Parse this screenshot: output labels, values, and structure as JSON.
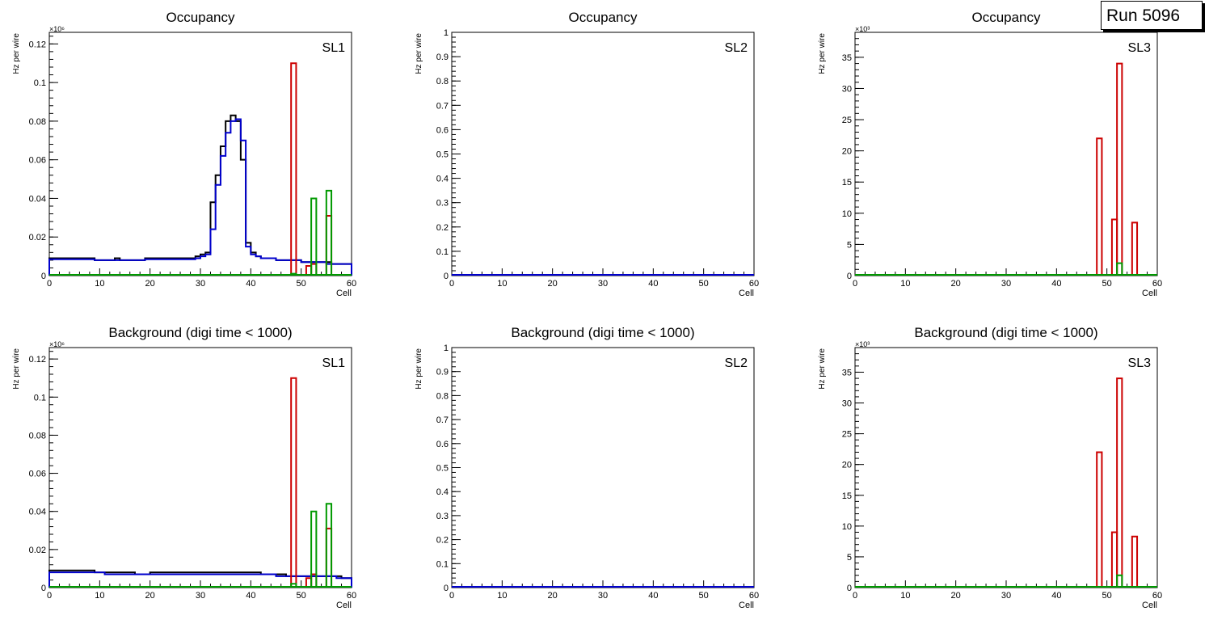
{
  "run_label": "Run 5096",
  "colors": {
    "black": "#000000",
    "blue": "#0000cc",
    "red": "#cc0000",
    "green": "#009900"
  },
  "chart_data": [
    {
      "type": "histogram",
      "title": "Occupancy",
      "label": "SL1",
      "xlabel": "Cell",
      "ylabel": "Hz per wire",
      "xlim": [
        0,
        60
      ],
      "ylim": [
        0,
        0.126
      ],
      "exponent": "×10⁶",
      "yticks": [
        0,
        0.02,
        0.04,
        0.06,
        0.08,
        0.1,
        0.12
      ],
      "yticklabels": [
        "0",
        "0.02",
        "0.04",
        "0.06",
        "0.08",
        "0.1",
        "0.12"
      ],
      "xticks": [
        0,
        10,
        20,
        30,
        40,
        50,
        60
      ],
      "series": [
        {
          "name": "black",
          "color": "#000000",
          "values": [
            0.009,
            0.009,
            0.009,
            0.009,
            0.009,
            0.009,
            0.009,
            0.009,
            0.009,
            0.008,
            0.008,
            0.008,
            0.008,
            0.009,
            0.008,
            0.008,
            0.008,
            0.008,
            0.008,
            0.009,
            0.009,
            0.009,
            0.009,
            0.009,
            0.009,
            0.009,
            0.009,
            0.009,
            0.009,
            0.01,
            0.011,
            0.012,
            0.038,
            0.052,
            0.067,
            0.08,
            0.083,
            0.08,
            0.06,
            0.017,
            0.012,
            0.01,
            0.009,
            0.009,
            0.009,
            0.008,
            0.008,
            0.008,
            0.008,
            0.008,
            0.007,
            0.007,
            0.007,
            0.007,
            0.007,
            0.007,
            0.006,
            0.006,
            0.006,
            0.006
          ]
        },
        {
          "name": "blue",
          "color": "#0000cc",
          "values": [
            0.0085,
            0.0085,
            0.0085,
            0.0085,
            0.0085,
            0.0085,
            0.0085,
            0.0085,
            0.0085,
            0.008,
            0.008,
            0.008,
            0.008,
            0.008,
            0.008,
            0.008,
            0.008,
            0.008,
            0.008,
            0.0085,
            0.0085,
            0.0085,
            0.0085,
            0.0085,
            0.0085,
            0.0085,
            0.0085,
            0.0085,
            0.0085,
            0.009,
            0.01,
            0.011,
            0.024,
            0.047,
            0.062,
            0.074,
            0.08,
            0.081,
            0.07,
            0.015,
            0.011,
            0.01,
            0.009,
            0.009,
            0.009,
            0.008,
            0.008,
            0.008,
            0.008,
            0.008,
            0.007,
            0.007,
            0.007,
            0.007,
            0.007,
            0.006,
            0.006,
            0.006,
            0.006,
            0.006
          ]
        },
        {
          "name": "red",
          "color": "#cc0000",
          "bars": [
            [
              48,
              0.11
            ],
            [
              51,
              0.005
            ],
            [
              52,
              0.006
            ],
            [
              55,
              0.031
            ]
          ]
        },
        {
          "name": "green",
          "color": "#009900",
          "bars": [
            [
              48,
              0.001
            ],
            [
              52,
              0.04
            ],
            [
              55,
              0.044
            ]
          ]
        }
      ]
    },
    {
      "type": "histogram",
      "title": "Occupancy",
      "label": "SL2",
      "xlabel": "Cell",
      "ylabel": "Hz per wire",
      "xlim": [
        0,
        60
      ],
      "ylim": [
        0,
        1
      ],
      "exponent": "",
      "yticks": [
        0,
        0.1,
        0.2,
        0.3,
        0.4,
        0.5,
        0.6,
        0.7,
        0.8,
        0.9,
        1
      ],
      "yticklabels": [
        "0",
        "0.1",
        "0.2",
        "0.3",
        "0.4",
        "0.5",
        "0.6",
        "0.7",
        "0.8",
        "0.9",
        "1"
      ],
      "xticks": [
        0,
        10,
        20,
        30,
        40,
        50,
        60
      ],
      "series": []
    },
    {
      "type": "histogram",
      "title": "Occupancy",
      "label": "SL3",
      "xlabel": "Cell",
      "ylabel": "Hz per wire",
      "xlim": [
        0,
        60
      ],
      "ylim": [
        0,
        39
      ],
      "exponent": "×10³",
      "yticks": [
        0,
        5,
        10,
        15,
        20,
        25,
        30,
        35
      ],
      "yticklabels": [
        "0",
        "5",
        "10",
        "15",
        "20",
        "25",
        "30",
        "35"
      ],
      "xticks": [
        0,
        10,
        20,
        30,
        40,
        50,
        60
      ],
      "series": [
        {
          "name": "red",
          "color": "#cc0000",
          "bars": [
            [
              48,
              22
            ],
            [
              51,
              9
            ],
            [
              52,
              34
            ],
            [
              55,
              8.5
            ]
          ]
        },
        {
          "name": "green",
          "color": "#009900",
          "bars": [
            [
              52,
              2
            ]
          ]
        }
      ]
    },
    {
      "type": "histogram",
      "title": "Background (digi time < 1000)",
      "label": "SL1",
      "xlabel": "Cell",
      "ylabel": "Hz per wire",
      "xlim": [
        0,
        60
      ],
      "ylim": [
        0,
        0.126
      ],
      "exponent": "×10⁶",
      "yticks": [
        0,
        0.02,
        0.04,
        0.06,
        0.08,
        0.1,
        0.12
      ],
      "yticklabels": [
        "0",
        "0.02",
        "0.04",
        "0.06",
        "0.08",
        "0.1",
        "0.12"
      ],
      "xticks": [
        0,
        10,
        20,
        30,
        40,
        50,
        60
      ],
      "series": [
        {
          "name": "black",
          "color": "#000000",
          "values": [
            0.009,
            0.009,
            0.009,
            0.009,
            0.009,
            0.009,
            0.009,
            0.009,
            0.009,
            0.008,
            0.008,
            0.008,
            0.008,
            0.008,
            0.008,
            0.008,
            0.008,
            0.007,
            0.007,
            0.007,
            0.008,
            0.008,
            0.008,
            0.008,
            0.008,
            0.008,
            0.008,
            0.008,
            0.008,
            0.008,
            0.008,
            0.008,
            0.008,
            0.008,
            0.008,
            0.008,
            0.008,
            0.008,
            0.008,
            0.008,
            0.008,
            0.008,
            0.007,
            0.007,
            0.007,
            0.007,
            0.007,
            0.006,
            0.006,
            0.006,
            0.006,
            0.006,
            0.006,
            0.006,
            0.006,
            0.006,
            0.006,
            0.006,
            0.005,
            0.005
          ]
        },
        {
          "name": "blue",
          "color": "#0000cc",
          "values": [
            0.008,
            0.008,
            0.008,
            0.008,
            0.008,
            0.008,
            0.008,
            0.008,
            0.008,
            0.008,
            0.008,
            0.007,
            0.007,
            0.007,
            0.007,
            0.007,
            0.007,
            0.007,
            0.007,
            0.007,
            0.007,
            0.007,
            0.007,
            0.007,
            0.007,
            0.007,
            0.007,
            0.007,
            0.007,
            0.007,
            0.007,
            0.007,
            0.007,
            0.007,
            0.007,
            0.007,
            0.007,
            0.007,
            0.007,
            0.007,
            0.007,
            0.007,
            0.007,
            0.007,
            0.007,
            0.006,
            0.006,
            0.006,
            0.006,
            0.006,
            0.006,
            0.006,
            0.006,
            0.006,
            0.006,
            0.006,
            0.006,
            0.005,
            0.005,
            0.005
          ]
        },
        {
          "name": "red",
          "color": "#cc0000",
          "bars": [
            [
              48,
              0.11
            ],
            [
              51,
              0.005
            ],
            [
              52,
              0.007
            ],
            [
              55,
              0.031
            ]
          ]
        },
        {
          "name": "green",
          "color": "#009900",
          "bars": [
            [
              48,
              0.002
            ],
            [
              52,
              0.04
            ],
            [
              55,
              0.044
            ]
          ]
        }
      ]
    },
    {
      "type": "histogram",
      "title": "Background (digi time < 1000)",
      "label": "SL2",
      "xlabel": "Cell",
      "ylabel": "Hz per wire",
      "xlim": [
        0,
        60
      ],
      "ylim": [
        0,
        1
      ],
      "exponent": "",
      "yticks": [
        0,
        0.1,
        0.2,
        0.3,
        0.4,
        0.5,
        0.6,
        0.7,
        0.8,
        0.9,
        1
      ],
      "yticklabels": [
        "0",
        "0.1",
        "0.2",
        "0.3",
        "0.4",
        "0.5",
        "0.6",
        "0.7",
        "0.8",
        "0.9",
        "1"
      ],
      "xticks": [
        0,
        10,
        20,
        30,
        40,
        50,
        60
      ],
      "series": []
    },
    {
      "type": "histogram",
      "title": "Background (digi time < 1000)",
      "label": "SL3",
      "xlabel": "Cell",
      "ylabel": "Hz per wire",
      "xlim": [
        0,
        60
      ],
      "ylim": [
        0,
        39
      ],
      "exponent": "×10³",
      "yticks": [
        0,
        5,
        10,
        15,
        20,
        25,
        30,
        35
      ],
      "yticklabels": [
        "0",
        "5",
        "10",
        "15",
        "20",
        "25",
        "30",
        "35"
      ],
      "xticks": [
        0,
        10,
        20,
        30,
        40,
        50,
        60
      ],
      "series": [
        {
          "name": "red",
          "color": "#cc0000",
          "bars": [
            [
              48,
              22
            ],
            [
              51,
              9
            ],
            [
              52,
              34
            ],
            [
              55,
              8.3
            ]
          ]
        },
        {
          "name": "green",
          "color": "#009900",
          "bars": [
            [
              52,
              2
            ]
          ]
        }
      ]
    }
  ]
}
